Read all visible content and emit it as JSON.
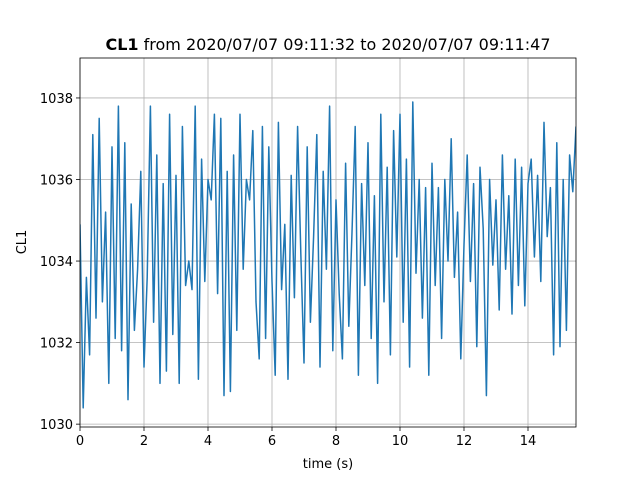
{
  "chart_data": {
    "type": "line",
    "title": {
      "bold": "CL1",
      "text": "from 2020/07/07 09:11:32 to 2020/07/07 09:11:47"
    },
    "xlabel": "time (s)",
    "ylabel": "CL1",
    "x": [
      0,
      0.1,
      0.2,
      0.3,
      0.4,
      0.5,
      0.6,
      0.7,
      0.8,
      0.9,
      1,
      1.1,
      1.2,
      1.3,
      1.4,
      1.5,
      1.6,
      1.7,
      1.8,
      1.9,
      2,
      2.1,
      2.2,
      2.3,
      2.4,
      2.5,
      2.6,
      2.7,
      2.8,
      2.9,
      3,
      3.1,
      3.2,
      3.3,
      3.4,
      3.5,
      3.6,
      3.7,
      3.8,
      3.9,
      4,
      4.1,
      4.2,
      4.3,
      4.4,
      4.5,
      4.6,
      4.7,
      4.8,
      4.9,
      5,
      5.1,
      5.2,
      5.3,
      5.4,
      5.5,
      5.6,
      5.7,
      5.8,
      5.9,
      6,
      6.1,
      6.2,
      6.3,
      6.4,
      6.5,
      6.6,
      6.7,
      6.8,
      6.9,
      7,
      7.1,
      7.2,
      7.3,
      7.4,
      7.5,
      7.6,
      7.7,
      7.8,
      7.9,
      8,
      8.1,
      8.2,
      8.3,
      8.4,
      8.5,
      8.6,
      8.7,
      8.8,
      8.9,
      9,
      9.1,
      9.2,
      9.3,
      9.4,
      9.5,
      9.6,
      9.7,
      9.8,
      9.9,
      10,
      10.1,
      10.2,
      10.3,
      10.4,
      10.5,
      10.6,
      10.7,
      10.8,
      10.9,
      11,
      11.1,
      11.2,
      11.3,
      11.4,
      11.5,
      11.6,
      11.7,
      11.8,
      11.9,
      12,
      12.1,
      12.2,
      12.3,
      12.4,
      12.5,
      12.6,
      12.7,
      12.8,
      12.9,
      13,
      13.1,
      13.2,
      13.3,
      13.4,
      13.5,
      13.6,
      13.7,
      13.8,
      13.9,
      14,
      14.1,
      14.2,
      14.3,
      14.4,
      14.5,
      14.6,
      14.7,
      14.8,
      14.9,
      15,
      15.1,
      15.2,
      15.3,
      15.4,
      15.5
    ],
    "values": [
      1034.9,
      1030.4,
      1033.6,
      1031.7,
      1037.1,
      1032.6,
      1037.5,
      1033.0,
      1035.2,
      1031.0,
      1036.8,
      1032.1,
      1037.8,
      1031.8,
      1036.9,
      1030.6,
      1035.4,
      1032.3,
      1033.8,
      1036.2,
      1031.4,
      1033.6,
      1037.8,
      1032.5,
      1036.6,
      1031.0,
      1035.9,
      1031.3,
      1037.6,
      1032.2,
      1036.1,
      1031.0,
      1037.3,
      1033.4,
      1034.0,
      1033.3,
      1037.8,
      1031.1,
      1036.5,
      1033.5,
      1036.0,
      1035.5,
      1037.6,
      1033.2,
      1037.5,
      1030.7,
      1036.2,
      1030.8,
      1036.6,
      1032.3,
      1037.6,
      1033.8,
      1036.0,
      1035.5,
      1037.2,
      1033.0,
      1031.6,
      1037.3,
      1032.1,
      1036.8,
      1033.5,
      1031.2,
      1037.4,
      1033.3,
      1034.9,
      1031.1,
      1036.1,
      1033.1,
      1037.3,
      1034.2,
      1031.5,
      1036.8,
      1032.5,
      1034.6,
      1037.1,
      1031.4,
      1036.2,
      1033.8,
      1037.8,
      1031.8,
      1035.5,
      1033.2,
      1031.6,
      1036.4,
      1032.4,
      1034.7,
      1037.3,
      1031.2,
      1035.9,
      1033.4,
      1036.9,
      1032.1,
      1035.6,
      1031.0,
      1037.6,
      1033.0,
      1036.3,
      1031.7,
      1037.2,
      1034.1,
      1037.6,
      1032.5,
      1036.5,
      1031.4,
      1037.9,
      1033.7,
      1036.0,
      1032.6,
      1035.8,
      1031.2,
      1036.4,
      1033.4,
      1035.8,
      1032.1,
      1036.0,
      1034.0,
      1037.0,
      1033.6,
      1035.2,
      1031.6,
      1034.4,
      1036.6,
      1033.5,
      1035.9,
      1031.9,
      1036.3,
      1034.8,
      1030.7,
      1036.0,
      1033.9,
      1035.5,
      1032.8,
      1036.6,
      1033.8,
      1035.6,
      1032.7,
      1036.5,
      1033.4,
      1036.3,
      1032.9,
      1035.9,
      1036.5,
      1034.1,
      1036.1,
      1033.5,
      1037.4,
      1034.6,
      1035.8,
      1031.7,
      1036.9,
      1031.9,
      1036.0,
      1032.3,
      1036.6,
      1035.7,
      1037.3
    ],
    "color": "#1f77b4",
    "xlim": [
      0,
      15.5
    ],
    "xticks": [
      0,
      2,
      4,
      6,
      8,
      10,
      12,
      14
    ],
    "ylim": [
      1029.93,
      1038.98
    ],
    "yticks": [
      1030,
      1032,
      1034,
      1036,
      1038
    ],
    "grid": true
  }
}
